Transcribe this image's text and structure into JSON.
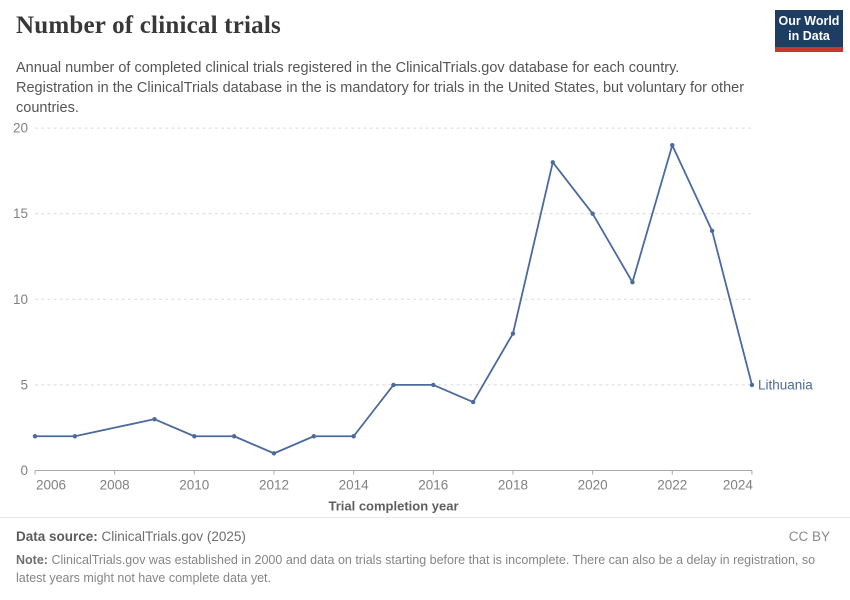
{
  "header": {
    "title": "Number of clinical trials",
    "subtitle": "Annual number of completed clinical trials registered in the ClinicalTrials.gov database for each country. Registration in the ClinicalTrials database in the is mandatory for trials in the United States, but voluntary for other countries.",
    "logo": {
      "line1": "Our World",
      "line2": "in Data"
    }
  },
  "chart_data": {
    "type": "line",
    "title": "Number of clinical trials",
    "xlabel": "Trial completion year",
    "ylabel": "",
    "x": [
      2006,
      2007,
      2008,
      2009,
      2010,
      2011,
      2012,
      2013,
      2014,
      2015,
      2016,
      2017,
      2018,
      2019,
      2020,
      2021,
      2022,
      2023,
      2024
    ],
    "series": [
      {
        "name": "Lithuania",
        "color": "#4c6a9c",
        "values": [
          2,
          2,
          null,
          3,
          2,
          2,
          1,
          2,
          2,
          5,
          5,
          4,
          8,
          18,
          15,
          11,
          19,
          14,
          5
        ]
      }
    ],
    "ylim": [
      0,
      20
    ],
    "yticks": [
      0,
      5,
      10,
      15,
      20
    ],
    "xticks": [
      2006,
      2008,
      2010,
      2012,
      2014,
      2016,
      2018,
      2020,
      2022,
      2024
    ],
    "grid": "horizontal-dashed",
    "legend": "end-of-line-label",
    "end_label": "Lithuania"
  },
  "footer": {
    "source_label": "Data source:",
    "source_value": "ClinicalTrials.gov (2025)",
    "license": "CC BY",
    "note_label": "Note:",
    "note_text": "ClinicalTrials.gov was established in 2000 and data on trials starting before that is incomplete. There can also be a delay in registration, so latest years might not have complete data yet."
  },
  "colors": {
    "line": "#4c6a9c",
    "grid": "#dadada",
    "axis": "#a8a8a8",
    "tick_text": "#818181",
    "axis_title_text": "#5e5e5e",
    "title_text": "#383838",
    "subtitle_text": "#555555",
    "footer_text": "#858585",
    "logo_bg": "#1d3d63",
    "logo_red": "#c7372f"
  }
}
